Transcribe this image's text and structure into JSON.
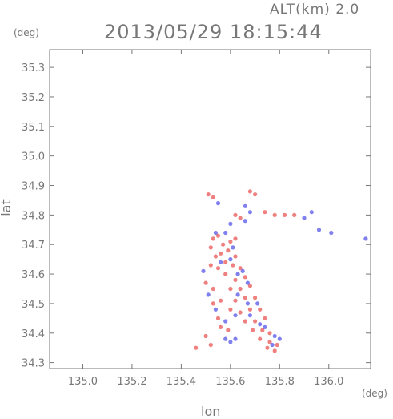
{
  "header": {
    "alt_label": "ALT(km) 2.0",
    "timestamp": "2013/05/29 18:15:44"
  },
  "chart_data": {
    "type": "scatter",
    "title": "2013/05/29 18:15:44",
    "xlabel": "lon",
    "ylabel": "lat",
    "x_unit": "(deg)",
    "y_unit": "(deg)",
    "xlim": [
      134.865,
      136.17
    ],
    "ylim": [
      34.28,
      35.36
    ],
    "x_ticks": [
      135.0,
      135.2,
      135.4,
      135.6,
      135.8,
      136.0
    ],
    "x_tick_labels": [
      "135.0",
      "135.2",
      "135.4",
      "135.6",
      "135.8",
      "136.0"
    ],
    "y_ticks": [
      34.3,
      34.4,
      34.5,
      34.6,
      34.7,
      34.8,
      34.9,
      35.0,
      35.1,
      35.2,
      35.3
    ],
    "y_tick_labels": [
      "34.3",
      "34.4",
      "34.5",
      "34.6",
      "34.7",
      "34.8",
      "34.9",
      "35.0",
      "35.1",
      "35.2",
      "35.3"
    ],
    "grid": false,
    "colors": {
      "positive": "#e84a4a",
      "negative": "#4a4ae8",
      "axis": "#777777"
    },
    "series": [
      {
        "values": [
          [
            135.51,
            34.87
          ],
          [
            135.53,
            34.86
          ],
          [
            135.68,
            34.88
          ],
          [
            135.7,
            34.87
          ],
          [
            135.74,
            34.81
          ],
          [
            135.78,
            34.8
          ],
          [
            135.82,
            34.8
          ],
          [
            135.86,
            34.8
          ],
          [
            135.62,
            34.8
          ],
          [
            135.64,
            34.79
          ],
          [
            135.53,
            34.72
          ],
          [
            135.55,
            34.73
          ],
          [
            135.57,
            34.7
          ],
          [
            135.6,
            34.71
          ],
          [
            135.62,
            34.72
          ],
          [
            135.52,
            34.69
          ],
          [
            135.54,
            34.66
          ],
          [
            135.56,
            34.67
          ],
          [
            135.59,
            34.68
          ],
          [
            135.62,
            34.66
          ],
          [
            135.52,
            34.63
          ],
          [
            135.55,
            34.62
          ],
          [
            135.58,
            34.64
          ],
          [
            135.61,
            34.63
          ],
          [
            135.64,
            34.62
          ],
          [
            135.58,
            34.6
          ],
          [
            135.62,
            34.58
          ],
          [
            135.66,
            34.59
          ],
          [
            135.6,
            34.55
          ],
          [
            135.64,
            34.55
          ],
          [
            135.68,
            34.56
          ],
          [
            135.62,
            34.51
          ],
          [
            135.66,
            34.52
          ],
          [
            135.7,
            34.52
          ],
          [
            135.53,
            34.5
          ],
          [
            135.56,
            34.51
          ],
          [
            135.6,
            34.48
          ],
          [
            135.64,
            34.47
          ],
          [
            135.68,
            34.48
          ],
          [
            135.72,
            34.48
          ],
          [
            135.66,
            34.44
          ],
          [
            135.7,
            34.44
          ],
          [
            135.74,
            34.45
          ],
          [
            135.69,
            34.41
          ],
          [
            135.73,
            34.41
          ],
          [
            135.76,
            34.4
          ],
          [
            135.72,
            34.38
          ],
          [
            135.76,
            34.37
          ],
          [
            135.79,
            34.36
          ],
          [
            135.75,
            34.35
          ],
          [
            135.78,
            34.34
          ],
          [
            135.56,
            34.42
          ],
          [
            135.59,
            34.41
          ],
          [
            135.5,
            34.39
          ],
          [
            135.52,
            34.36
          ],
          [
            135.46,
            34.35
          ],
          [
            135.5,
            34.57
          ],
          [
            135.53,
            34.55
          ],
          [
            135.55,
            34.45
          ]
        ]
      },
      {
        "values": [
          [
            135.55,
            34.84
          ],
          [
            135.66,
            34.83
          ],
          [
            135.68,
            34.81
          ],
          [
            135.9,
            34.79
          ],
          [
            135.93,
            34.81
          ],
          [
            135.96,
            34.75
          ],
          [
            136.01,
            34.74
          ],
          [
            136.15,
            34.72
          ],
          [
            135.66,
            34.78
          ],
          [
            135.6,
            34.77
          ],
          [
            135.54,
            34.74
          ],
          [
            135.58,
            34.74
          ],
          [
            135.61,
            34.69
          ],
          [
            135.56,
            34.64
          ],
          [
            135.6,
            34.65
          ],
          [
            135.63,
            34.6
          ],
          [
            135.65,
            34.61
          ],
          [
            135.67,
            34.57
          ],
          [
            135.63,
            34.53
          ],
          [
            135.67,
            34.5
          ],
          [
            135.71,
            34.5
          ],
          [
            135.62,
            34.46
          ],
          [
            135.68,
            34.46
          ],
          [
            135.72,
            34.43
          ],
          [
            135.74,
            34.42
          ],
          [
            135.78,
            34.39
          ],
          [
            135.8,
            34.38
          ],
          [
            135.77,
            34.36
          ],
          [
            135.58,
            34.38
          ],
          [
            135.6,
            34.37
          ],
          [
            135.62,
            34.38
          ],
          [
            135.54,
            34.48
          ],
          [
            135.51,
            34.53
          ],
          [
            135.49,
            34.61
          ],
          [
            135.58,
            34.44
          ]
        ]
      }
    ]
  }
}
